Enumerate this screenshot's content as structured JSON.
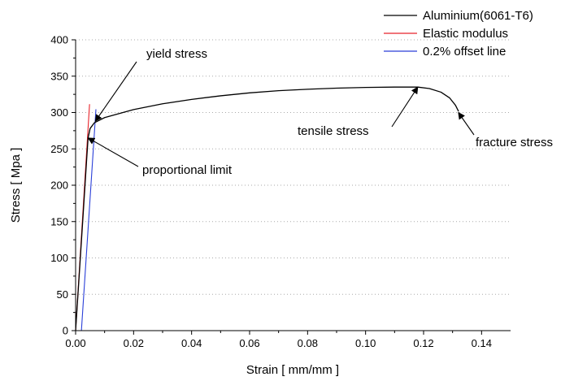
{
  "chart_data": {
    "type": "line",
    "xlabel": "Strain [ mm/mm ]",
    "ylabel": "Stress [ Mpa ]",
    "xlim": [
      0,
      0.15
    ],
    "ylim": [
      0,
      400
    ],
    "x_ticks": [
      0.0,
      0.02,
      0.04,
      0.06,
      0.08,
      0.1,
      0.12,
      0.14
    ],
    "x_tick_labels": [
      "0.00",
      "0.02",
      "0.04",
      "0.06",
      "0.08",
      "0.10",
      "0.12",
      "0.14"
    ],
    "y_ticks": [
      0,
      50,
      100,
      150,
      200,
      250,
      300,
      350,
      400
    ],
    "y_tick_labels": [
      "0",
      "50",
      "100",
      "150",
      "200",
      "250",
      "300",
      "350",
      "400"
    ],
    "grid": "horizontal dotted",
    "legend_position": "top-right",
    "series": [
      {
        "name": "Aluminium(6061-T6)",
        "color": "#000000",
        "points": [
          [
            0.0,
            0
          ],
          [
            0.0013,
            80
          ],
          [
            0.0026,
            160
          ],
          [
            0.0038,
            235
          ],
          [
            0.0043,
            265
          ],
          [
            0.005,
            278
          ],
          [
            0.0065,
            286
          ],
          [
            0.01,
            293
          ],
          [
            0.02,
            304
          ],
          [
            0.03,
            312
          ],
          [
            0.04,
            318
          ],
          [
            0.05,
            323
          ],
          [
            0.06,
            327
          ],
          [
            0.07,
            330
          ],
          [
            0.08,
            332
          ],
          [
            0.09,
            333.5
          ],
          [
            0.1,
            334.5
          ],
          [
            0.11,
            335
          ],
          [
            0.118,
            335
          ],
          [
            0.122,
            333
          ],
          [
            0.126,
            328
          ],
          [
            0.129,
            320
          ],
          [
            0.131,
            310
          ],
          [
            0.132,
            302
          ]
        ]
      },
      {
        "name": "Elastic modulus",
        "color": "#e8232a",
        "points": [
          [
            0.0,
            0
          ],
          [
            0.0048,
            311
          ]
        ]
      },
      {
        "name": "0.2% offset line",
        "color": "#2a3fd8",
        "points": [
          [
            0.002,
            0
          ],
          [
            0.007,
            304
          ]
        ]
      }
    ],
    "annotations": [
      {
        "text": "yield stress",
        "target": [
          0.0068,
          288
        ]
      },
      {
        "text": "proportional limit",
        "target": [
          0.0043,
          265
        ]
      },
      {
        "text": "tensile stress",
        "target": [
          0.118,
          335
        ]
      },
      {
        "text": "fracture stress",
        "target": [
          0.132,
          300
        ]
      }
    ]
  }
}
